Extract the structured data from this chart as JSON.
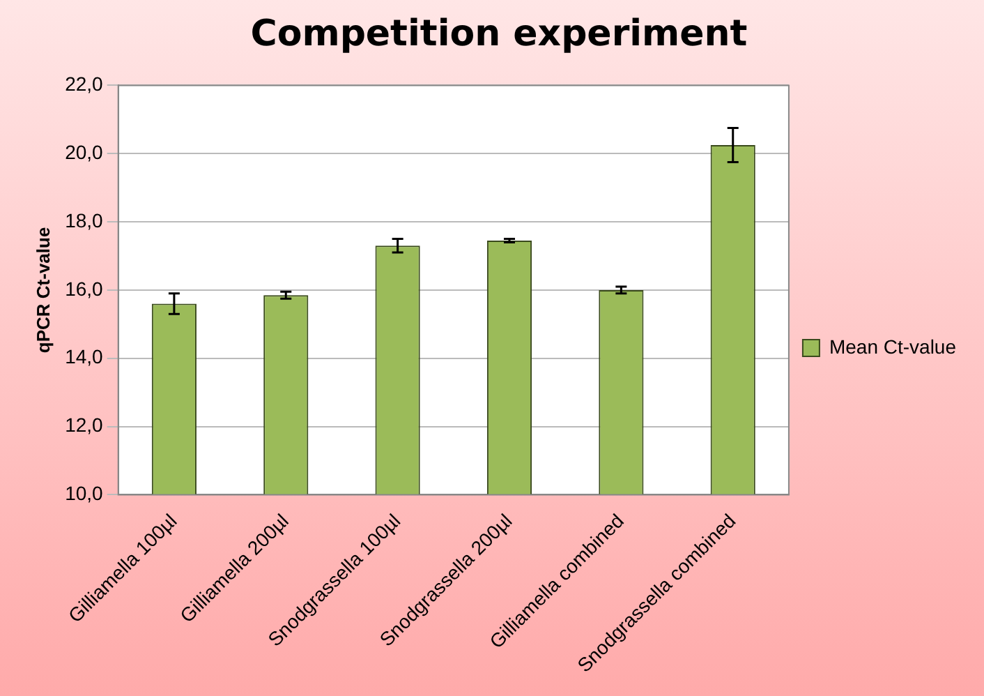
{
  "chart_data": {
    "type": "bar",
    "title": "Competition experiment",
    "ylabel": "qPCR Ct-value",
    "categories": [
      "Gilliamella 100µl",
      "Gilliamella 200µl",
      "Snodgrassella 100µl",
      "Snodgrassella 200µl",
      "Gilliamella combined",
      "Snodgrassella combined"
    ],
    "series": [
      {
        "name": "Mean Ct-value",
        "color": "#9bbb59",
        "values": [
          15.6,
          15.85,
          17.3,
          17.45,
          16.0,
          20.25
        ],
        "errors": [
          0.3,
          0.1,
          0.2,
          0.05,
          0.1,
          0.5
        ]
      }
    ],
    "ylim": [
      10,
      22
    ],
    "yticks": [
      {
        "value": 10,
        "label": "10,0"
      },
      {
        "value": 12,
        "label": "12,0"
      },
      {
        "value": 14,
        "label": "14,0"
      },
      {
        "value": 16,
        "label": "16,0"
      },
      {
        "value": 18,
        "label": "18,0"
      },
      {
        "value": 20,
        "label": "20,0"
      },
      {
        "value": 22,
        "label": "22,0"
      }
    ],
    "grid": "y",
    "legend": "right"
  }
}
